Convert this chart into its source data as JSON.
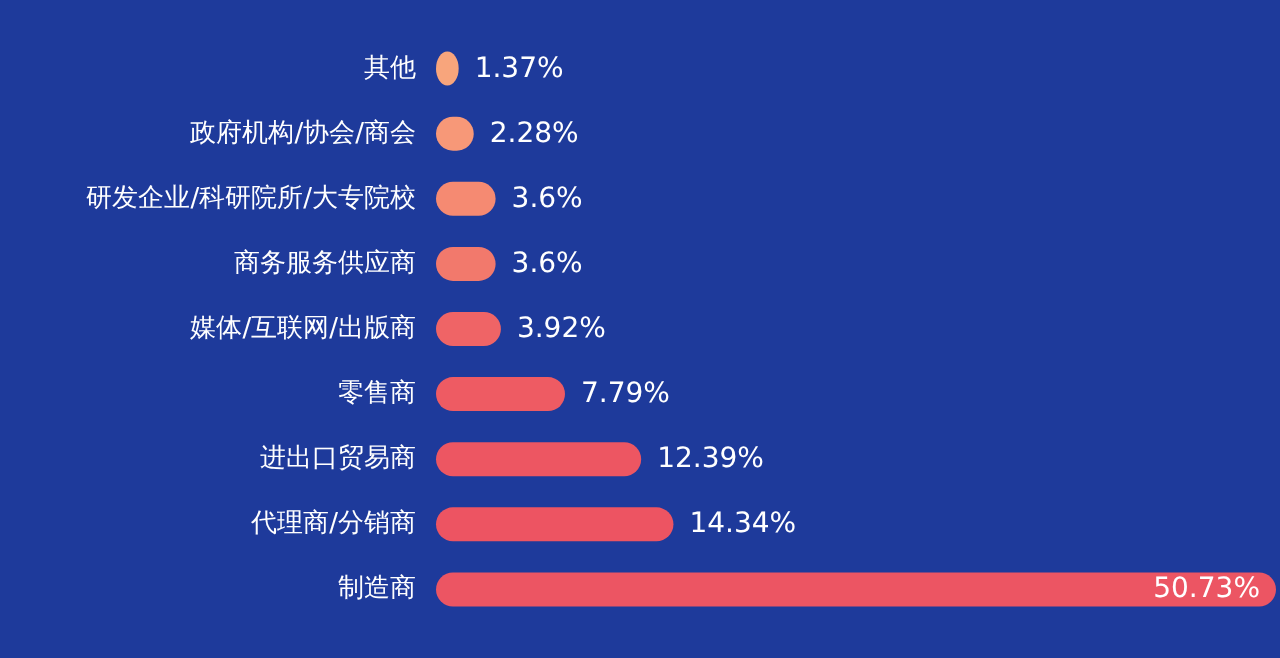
{
  "chart_data": {
    "type": "bar",
    "orientation": "horizontal",
    "categories": [
      "其他",
      "政府机构/协会/商会",
      "研发企业/科研院所/大专院校",
      "商务服务供应商",
      "媒体/互联网/出版商",
      "零售商",
      "进出口贸易商",
      "代理商/分销商",
      "制造商"
    ],
    "values": [
      1.37,
      2.28,
      3.6,
      3.6,
      3.92,
      7.79,
      12.39,
      14.34,
      50.73
    ],
    "colors": [
      "#f8a57c",
      "#f79878",
      "#f58a72",
      "#f2796c",
      "#ef6466",
      "#ee5b63",
      "#ed5662",
      "#ed5462",
      "#ec5563"
    ],
    "value_labels": [
      "1.37%",
      "2.28%",
      "3.6%",
      "3.6%",
      "3.92%",
      "7.79%",
      "12.39%",
      "14.34%",
      "50.73%"
    ]
  }
}
